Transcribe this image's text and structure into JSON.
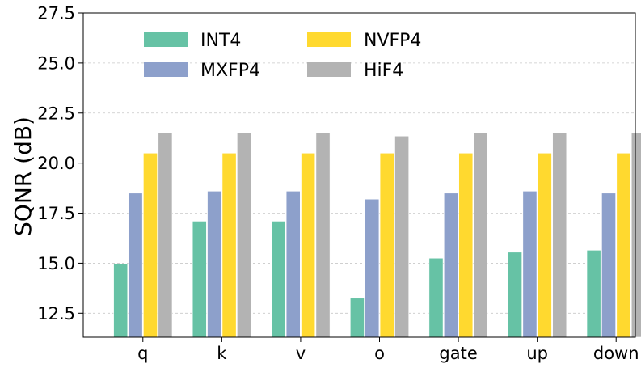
{
  "chart_data": {
    "type": "bar",
    "title": "",
    "xlabel": "",
    "ylabel": "SQNR (dB)",
    "ylim": [
      11.3,
      27.5
    ],
    "yticks": [
      12.5,
      15.0,
      17.5,
      20.0,
      22.5,
      25.0,
      27.5
    ],
    "ytick_labels": [
      "12.5",
      "15.0",
      "17.5",
      "20.0",
      "22.5",
      "25.0",
      "27.5"
    ],
    "grid": "horizontal dashed",
    "legend_position": "top",
    "categories": [
      "q",
      "k",
      "v",
      "o",
      "gate",
      "up",
      "down"
    ],
    "series": [
      {
        "name": "INT4",
        "color": "#66c2a5",
        "values": [
          14.95,
          17.1,
          17.1,
          13.25,
          15.25,
          15.55,
          15.65
        ]
      },
      {
        "name": "MXFP4",
        "color": "#8da0cb",
        "values": [
          18.5,
          18.6,
          18.6,
          18.2,
          18.5,
          18.6,
          18.5
        ]
      },
      {
        "name": "NVFP4",
        "color": "#ffd92f",
        "values": [
          20.5,
          20.5,
          20.5,
          20.5,
          20.5,
          20.5,
          20.5
        ]
      },
      {
        "name": "HiF4",
        "color": "#b3b3b3",
        "values": [
          21.5,
          21.5,
          21.5,
          21.35,
          21.5,
          21.5,
          21.5
        ]
      }
    ]
  }
}
